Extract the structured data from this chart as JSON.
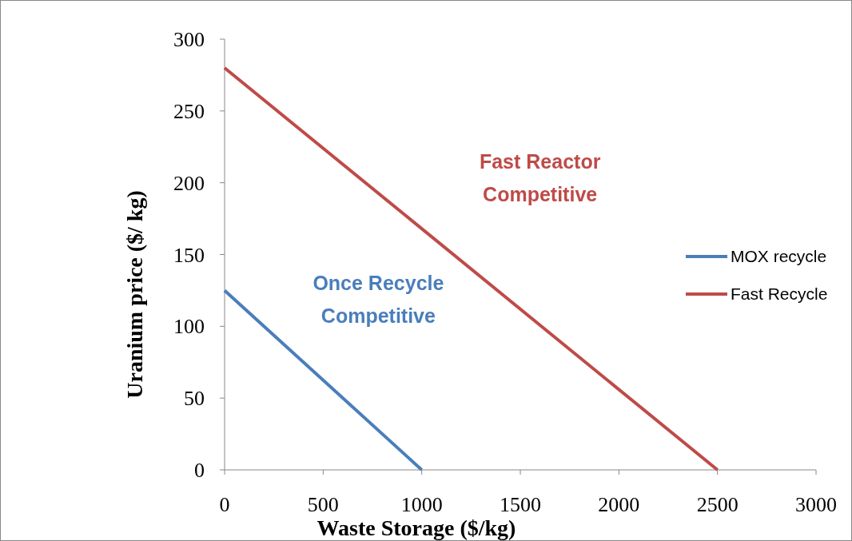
{
  "chart_data": {
    "type": "line",
    "xlabel": "Waste Storage ($/kg)",
    "ylabel": "Uranium price ($/ kg)",
    "xlim": [
      0,
      3000
    ],
    "xticks": [
      0,
      500,
      1000,
      1500,
      2000,
      2500,
      3000
    ],
    "ylim": [
      0,
      300
    ],
    "yticks": [
      0,
      50,
      100,
      150,
      200,
      250,
      300
    ],
    "grid": false,
    "legend": "right",
    "marker": "none",
    "line_style": "solid",
    "series": [
      {
        "name": "MOX recycle",
        "color": "#4a7ebb",
        "x": [
          0,
          1000
        ],
        "values": [
          125,
          0
        ]
      },
      {
        "name": "Fast Recycle",
        "color": "#be4b48",
        "x": [
          0,
          2500
        ],
        "values": [
          280,
          0
        ]
      }
    ],
    "annotations": [
      "Fast Reactor Competitive",
      "Once Recycle Competitive"
    ]
  }
}
